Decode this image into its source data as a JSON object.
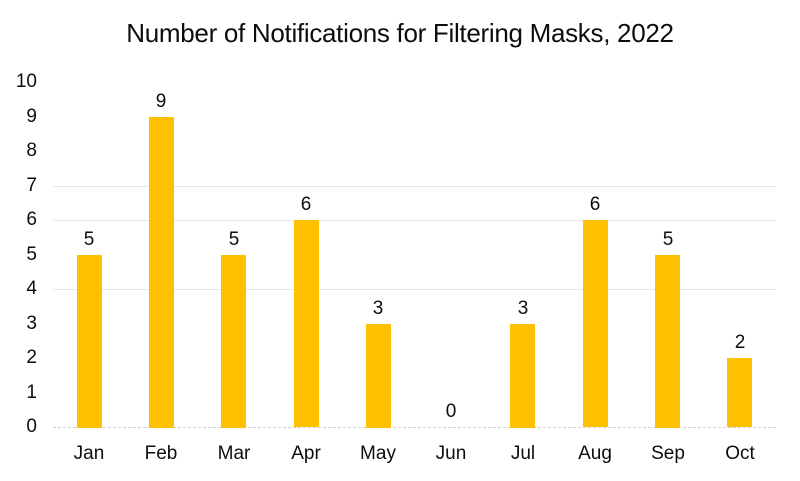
{
  "chart_data": {
    "type": "bar",
    "title": "Number of Notifications for Filtering Masks, 2022",
    "categories": [
      "Jan",
      "Feb",
      "Mar",
      "Apr",
      "May",
      "Jun",
      "Jul",
      "Aug",
      "Sep",
      "Oct"
    ],
    "values": [
      5,
      9,
      5,
      6,
      3,
      0,
      3,
      6,
      5,
      2
    ],
    "xlabel": "",
    "ylabel": "",
    "ylim": [
      0,
      10
    ],
    "yticks": [
      0,
      1,
      2,
      3,
      4,
      5,
      6,
      7,
      8,
      9,
      10
    ],
    "gridlines_visible_at": [
      4,
      6,
      7
    ],
    "grid": "partial-horizontal",
    "data_labels": true,
    "legend": "none",
    "colors": {
      "bar": "#ffc000",
      "text": "#0d0d0d",
      "gridline": "#e8e8e8",
      "baseline": "#cfcfcf",
      "background": "#ffffff"
    }
  }
}
